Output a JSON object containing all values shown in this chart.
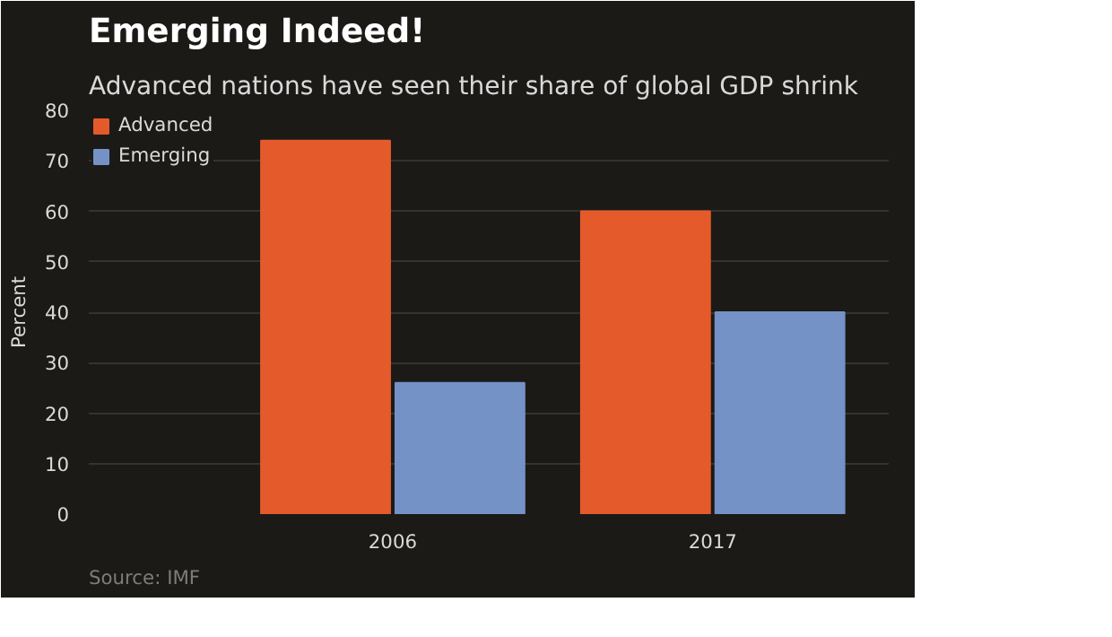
{
  "chart_data": {
    "type": "bar",
    "title": "Emerging Indeed!",
    "subtitle": "Advanced nations have seen their share of global GDP shrink",
    "ylabel": "Percent",
    "categories": [
      "2006",
      "2017"
    ],
    "series": [
      {
        "name": "Advanced",
        "color": "#e55a2b",
        "values": [
          74,
          60
        ]
      },
      {
        "name": "Emerging",
        "color": "#7492c6",
        "values": [
          26,
          40
        ]
      }
    ],
    "ylim": [
      0,
      80
    ],
    "yticks": [
      0,
      10,
      20,
      30,
      40,
      50,
      60,
      70,
      80
    ],
    "grid": "y",
    "legend": "top left",
    "annotations": [
      "Source: IMF"
    ]
  }
}
